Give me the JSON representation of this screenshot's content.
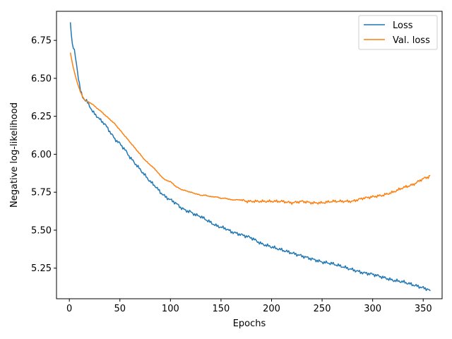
{
  "chart_data": {
    "type": "line",
    "title": "",
    "xlabel": "Epochs",
    "ylabel": "Negative log-likelihood",
    "xlim": [
      -12.7,
      368.7
    ],
    "ylim": [
      5.0485,
      6.9415
    ],
    "xticks": [
      0,
      50,
      100,
      150,
      200,
      250,
      300,
      350
    ],
    "yticks": [
      5.25,
      5.5,
      5.75,
      6.0,
      6.25,
      6.5,
      6.75
    ],
    "ytick_labels": [
      "5.25",
      "5.50",
      "5.75",
      "6.00",
      "6.25",
      "6.50",
      "6.75"
    ],
    "grid": false,
    "legend_position": "top-right",
    "series": [
      {
        "name": "Loss",
        "color": "#1f77b4",
        "x": [
          1,
          3,
          5,
          7,
          9,
          11,
          13,
          15,
          17,
          20,
          23,
          26,
          30,
          35,
          40,
          45,
          50,
          55,
          60,
          65,
          70,
          75,
          80,
          85,
          90,
          95,
          100,
          105,
          110,
          115,
          120,
          125,
          130,
          135,
          140,
          145,
          150,
          155,
          160,
          165,
          170,
          175,
          180,
          185,
          190,
          195,
          200,
          210,
          220,
          230,
          240,
          250,
          260,
          270,
          280,
          290,
          300,
          310,
          320,
          330,
          340,
          345,
          350,
          355,
          357
        ],
        "y": [
          6.87,
          6.72,
          6.68,
          6.6,
          6.5,
          6.42,
          6.38,
          6.36,
          6.35,
          6.32,
          6.28,
          6.26,
          6.23,
          6.2,
          6.15,
          6.1,
          6.07,
          6.03,
          5.98,
          5.94,
          5.9,
          5.86,
          5.82,
          5.79,
          5.75,
          5.72,
          5.7,
          5.68,
          5.65,
          5.63,
          5.62,
          5.6,
          5.59,
          5.57,
          5.55,
          5.53,
          5.52,
          5.51,
          5.49,
          5.48,
          5.47,
          5.46,
          5.45,
          5.43,
          5.41,
          5.4,
          5.39,
          5.37,
          5.35,
          5.33,
          5.31,
          5.29,
          5.28,
          5.26,
          5.24,
          5.22,
          5.21,
          5.19,
          5.17,
          5.16,
          5.14,
          5.13,
          5.12,
          5.11,
          5.1
        ]
      },
      {
        "name": "Val. loss",
        "color": "#ff7f0e",
        "x": [
          1,
          3,
          5,
          7,
          9,
          11,
          13,
          15,
          17,
          20,
          23,
          26,
          30,
          35,
          40,
          45,
          50,
          55,
          60,
          65,
          70,
          75,
          80,
          85,
          90,
          95,
          100,
          105,
          110,
          115,
          120,
          125,
          130,
          135,
          140,
          145,
          150,
          155,
          160,
          165,
          170,
          175,
          180,
          185,
          190,
          195,
          200,
          210,
          220,
          230,
          240,
          250,
          260,
          270,
          280,
          290,
          300,
          310,
          320,
          330,
          340,
          345,
          350,
          355,
          357
        ],
        "y": [
          6.67,
          6.6,
          6.54,
          6.49,
          6.45,
          6.41,
          6.38,
          6.36,
          6.35,
          6.34,
          6.33,
          6.31,
          6.29,
          6.26,
          6.23,
          6.2,
          6.16,
          6.12,
          6.08,
          6.04,
          6.0,
          5.96,
          5.93,
          5.9,
          5.86,
          5.83,
          5.82,
          5.79,
          5.77,
          5.76,
          5.75,
          5.74,
          5.73,
          5.73,
          5.72,
          5.72,
          5.71,
          5.71,
          5.7,
          5.7,
          5.7,
          5.69,
          5.69,
          5.69,
          5.69,
          5.69,
          5.69,
          5.69,
          5.68,
          5.69,
          5.68,
          5.68,
          5.69,
          5.69,
          5.69,
          5.71,
          5.72,
          5.73,
          5.75,
          5.78,
          5.8,
          5.82,
          5.84,
          5.85,
          5.86
        ]
      }
    ]
  }
}
